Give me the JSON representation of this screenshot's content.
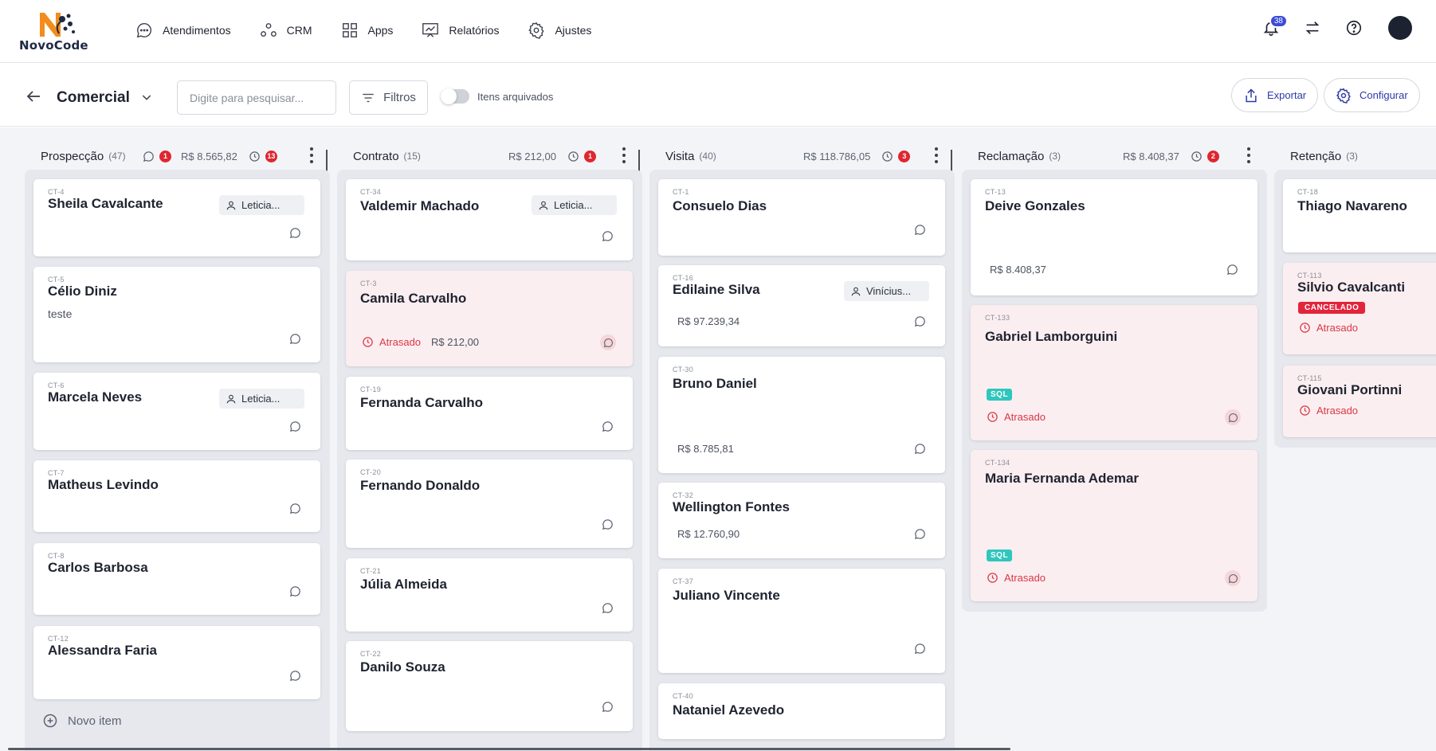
{
  "brand": {
    "name": "NovoCode"
  },
  "nav": {
    "items": [
      {
        "label": "Atendimentos",
        "icon": "chat-bubble-icon"
      },
      {
        "label": "CRM",
        "icon": "crm-nodes-icon"
      },
      {
        "label": "Apps",
        "icon": "apps-grid-icon"
      },
      {
        "label": "Relatórios",
        "icon": "report-chart-icon"
      },
      {
        "label": "Ajustes",
        "icon": "gear-icon"
      }
    ],
    "notifications_count": "38"
  },
  "toolbar": {
    "board_name": "Comercial",
    "search_placeholder": "Digite para pesquisar...",
    "filters_label": "Filtros",
    "archived_label": "Itens arquivados",
    "export_label": "Exportar",
    "configure_label": "Configurar"
  },
  "columns": [
    {
      "title": "Prospecção",
      "count": "(47)",
      "chat_badge": "1",
      "total": "R$ 8.565,82",
      "late_badge": "13",
      "new_item_label": "Novo item",
      "cards": [
        {
          "id": "CT-4",
          "name": "Sheila Cavalcante",
          "assignee": "Leticia..."
        },
        {
          "id": "CT-5",
          "name": "Célio Diniz",
          "note": "teste"
        },
        {
          "id": "CT-6",
          "name": "Marcela Neves",
          "assignee": "Leticia..."
        },
        {
          "id": "CT-7",
          "name": "Matheus Levindo"
        },
        {
          "id": "CT-8",
          "name": "Carlos Barbosa"
        },
        {
          "id": "CT-12",
          "name": "Alessandra Faria"
        }
      ]
    },
    {
      "title": "Contrato",
      "count": "(15)",
      "total": "R$ 212,00",
      "late_badge": "1",
      "cards": [
        {
          "id": "CT-34",
          "name": "Valdemir Machado",
          "assignee": "Leticia..."
        },
        {
          "id": "CT-3",
          "name": "Camila Carvalho",
          "late_label": "Atrasado",
          "value": "R$ 212,00"
        },
        {
          "id": "CT-19",
          "name": "Fernanda Carvalho"
        },
        {
          "id": "CT-20",
          "name": "Fernando Donaldo"
        },
        {
          "id": "CT-21",
          "name": "Júlia Almeida"
        },
        {
          "id": "CT-22",
          "name": "Danilo Souza"
        }
      ]
    },
    {
      "title": "Visita",
      "count": "(40)",
      "total": "R$ 118.786,05",
      "late_badge": "3",
      "cards": [
        {
          "id": "CT-1",
          "name": "Consuelo Dias"
        },
        {
          "id": "CT-16",
          "name": "Edilaine Silva",
          "assignee": "Vinícius...",
          "value": "R$ 97.239,34"
        },
        {
          "id": "CT-30",
          "name": "Bruno Daniel",
          "value": "R$ 8.785,81"
        },
        {
          "id": "CT-32",
          "name": "Wellington Fontes",
          "value": "R$ 12.760,90"
        },
        {
          "id": "CT-37",
          "name": "Juliano Vincente"
        },
        {
          "id": "CT-40",
          "name": "Nataniel Azevedo"
        }
      ]
    },
    {
      "title": "Reclamação",
      "count": "(3)",
      "total": "R$ 8.408,37",
      "late_badge": "2",
      "cards": [
        {
          "id": "CT-13",
          "name": "Deive Gonzales",
          "value": "R$ 8.408,37"
        },
        {
          "id": "CT-133",
          "name": "Gabriel Lamborguini",
          "tag": "SQL",
          "late_label": "Atrasado"
        },
        {
          "id": "CT-134",
          "name": "Maria Fernanda Ademar",
          "tag": "SQL",
          "late_label": "Atrasado"
        }
      ]
    },
    {
      "title": "Retenção",
      "count": "(3)",
      "cards": [
        {
          "id": "CT-18",
          "name": "Thiago Navareno"
        },
        {
          "id": "CT-113",
          "name": "Silvio Cavalcanti",
          "tag": "CANCELADO",
          "late_label": "Atrasado"
        },
        {
          "id": "CT-115",
          "name": "Giovani Portinni",
          "late_label": "Atrasado"
        }
      ]
    }
  ],
  "colors": {
    "accent": "#2d3aa8",
    "late": "#d93846",
    "late_bg": "#fbeef0",
    "sql": "#2fc6bd",
    "cancel": "#e3243b",
    "badge": "#e0262f"
  }
}
